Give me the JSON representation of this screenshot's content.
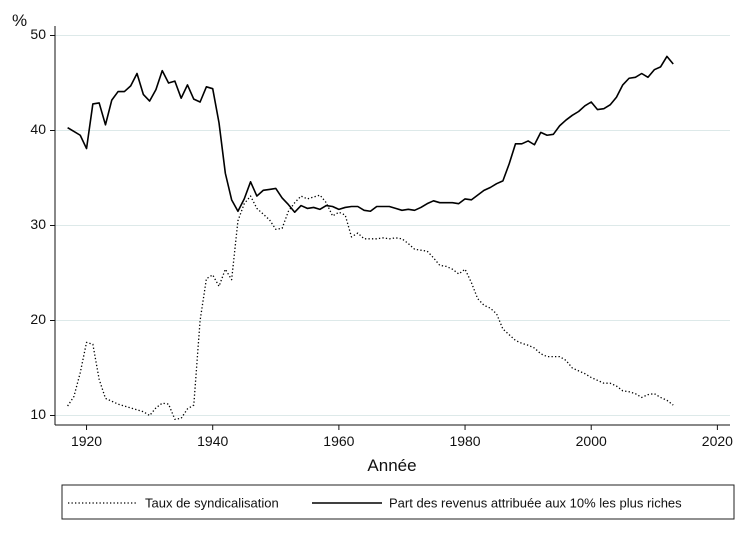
{
  "chart_data": {
    "type": "line",
    "title": "",
    "xlabel": "Année",
    "ylabel": "%",
    "xlim": [
      1915,
      2022
    ],
    "ylim": [
      9,
      51
    ],
    "x_ticks": [
      1920,
      1940,
      1960,
      1980,
      2000,
      2020
    ],
    "y_ticks": [
      10,
      20,
      30,
      40,
      50
    ],
    "grid": "horizontal",
    "legend_position": "bottom",
    "series": [
      {
        "name": "Taux de syndicalisation",
        "style": "dotted",
        "color": "#000000",
        "x": [
          1917,
          1918,
          1919,
          1920,
          1921,
          1922,
          1923,
          1924,
          1925,
          1926,
          1927,
          1928,
          1929,
          1930,
          1931,
          1932,
          1933,
          1934,
          1935,
          1936,
          1937,
          1938,
          1939,
          1940,
          1941,
          1942,
          1943,
          1944,
          1945,
          1946,
          1947,
          1948,
          1949,
          1950,
          1951,
          1952,
          1953,
          1954,
          1955,
          1956,
          1957,
          1958,
          1959,
          1960,
          1961,
          1962,
          1963,
          1964,
          1965,
          1966,
          1967,
          1968,
          1969,
          1970,
          1971,
          1972,
          1973,
          1974,
          1975,
          1976,
          1977,
          1978,
          1979,
          1980,
          1981,
          1982,
          1983,
          1984,
          1985,
          1986,
          1987,
          1988,
          1989,
          1990,
          1991,
          1992,
          1993,
          1994,
          1995,
          1996,
          1997,
          1998,
          1999,
          2000,
          2001,
          2002,
          2003,
          2004,
          2005,
          2006,
          2007,
          2008,
          2009,
          2010,
          2011,
          2012,
          2013
        ],
        "y": [
          11.0,
          12.0,
          14.5,
          17.7,
          17.5,
          13.8,
          11.8,
          11.5,
          11.2,
          11.0,
          10.8,
          10.6,
          10.4,
          10.0,
          10.8,
          11.3,
          11.2,
          9.6,
          9.7,
          10.7,
          11.1,
          20.0,
          24.4,
          24.8,
          23.6,
          25.4,
          24.3,
          30.5,
          32.3,
          33.1,
          31.8,
          31.2,
          30.6,
          29.6,
          29.7,
          31.5,
          32.4,
          33.1,
          32.8,
          33.0,
          33.2,
          32.4,
          31.0,
          31.4,
          31.1,
          28.8,
          29.2,
          28.6,
          28.6,
          28.6,
          28.7,
          28.6,
          28.7,
          28.6,
          28.1,
          27.5,
          27.4,
          27.3,
          26.6,
          25.8,
          25.7,
          25.4,
          24.9,
          25.4,
          24.0,
          22.3,
          21.6,
          21.3,
          20.7,
          19.1,
          18.5,
          17.9,
          17.6,
          17.4,
          17.1,
          16.5,
          16.2,
          16.2,
          16.2,
          15.8,
          15.0,
          14.7,
          14.4,
          14.0,
          13.7,
          13.4,
          13.4,
          13.1,
          12.6,
          12.5,
          12.3,
          11.9,
          12.2,
          12.3,
          11.9,
          11.6,
          11.1
        ]
      },
      {
        "name": "Part des revenus attribuée aux 10% les plus riches",
        "style": "solid",
        "color": "#000000",
        "x": [
          1917,
          1918,
          1919,
          1920,
          1921,
          1922,
          1923,
          1924,
          1925,
          1926,
          1927,
          1928,
          1929,
          1930,
          1931,
          1932,
          1933,
          1934,
          1935,
          1936,
          1937,
          1938,
          1939,
          1940,
          1941,
          1942,
          1943,
          1944,
          1945,
          1946,
          1947,
          1948,
          1949,
          1950,
          1951,
          1952,
          1953,
          1954,
          1955,
          1956,
          1957,
          1958,
          1959,
          1960,
          1961,
          1962,
          1963,
          1964,
          1965,
          1966,
          1967,
          1968,
          1969,
          1970,
          1971,
          1972,
          1973,
          1974,
          1975,
          1976,
          1977,
          1978,
          1979,
          1980,
          1981,
          1982,
          1983,
          1984,
          1985,
          1986,
          1987,
          1988,
          1989,
          1990,
          1991,
          1992,
          1993,
          1994,
          1995,
          1996,
          1997,
          1998,
          1999,
          2000,
          2001,
          2002,
          2003,
          2004,
          2005,
          2006,
          2007,
          2008,
          2009,
          2010,
          2011,
          2012,
          2013
        ],
        "y": [
          40.3,
          39.9,
          39.5,
          38.1,
          42.8,
          42.9,
          40.6,
          43.2,
          44.1,
          44.1,
          44.7,
          46.0,
          43.8,
          43.1,
          44.3,
          46.3,
          45.0,
          45.2,
          43.4,
          44.8,
          43.3,
          43.0,
          44.6,
          44.4,
          40.8,
          35.5,
          32.7,
          31.5,
          32.8,
          34.6,
          33.1,
          33.7,
          33.8,
          33.9,
          32.9,
          32.2,
          31.4,
          32.1,
          31.8,
          31.9,
          31.7,
          32.1,
          32.0,
          31.7,
          31.9,
          32.0,
          32.0,
          31.6,
          31.5,
          32.0,
          32.0,
          32.0,
          31.8,
          31.6,
          31.7,
          31.6,
          31.9,
          32.3,
          32.6,
          32.4,
          32.4,
          32.4,
          32.3,
          32.8,
          32.7,
          33.2,
          33.7,
          34.0,
          34.4,
          34.7,
          36.5,
          38.6,
          38.6,
          38.9,
          38.5,
          39.8,
          39.5,
          39.6,
          40.5,
          41.1,
          41.6,
          42.0,
          42.6,
          43.0,
          42.2,
          42.3,
          42.7,
          43.5,
          44.8,
          45.5,
          45.6,
          46.0,
          45.6,
          46.4,
          46.7,
          47.8,
          47.0
        ]
      }
    ]
  }
}
